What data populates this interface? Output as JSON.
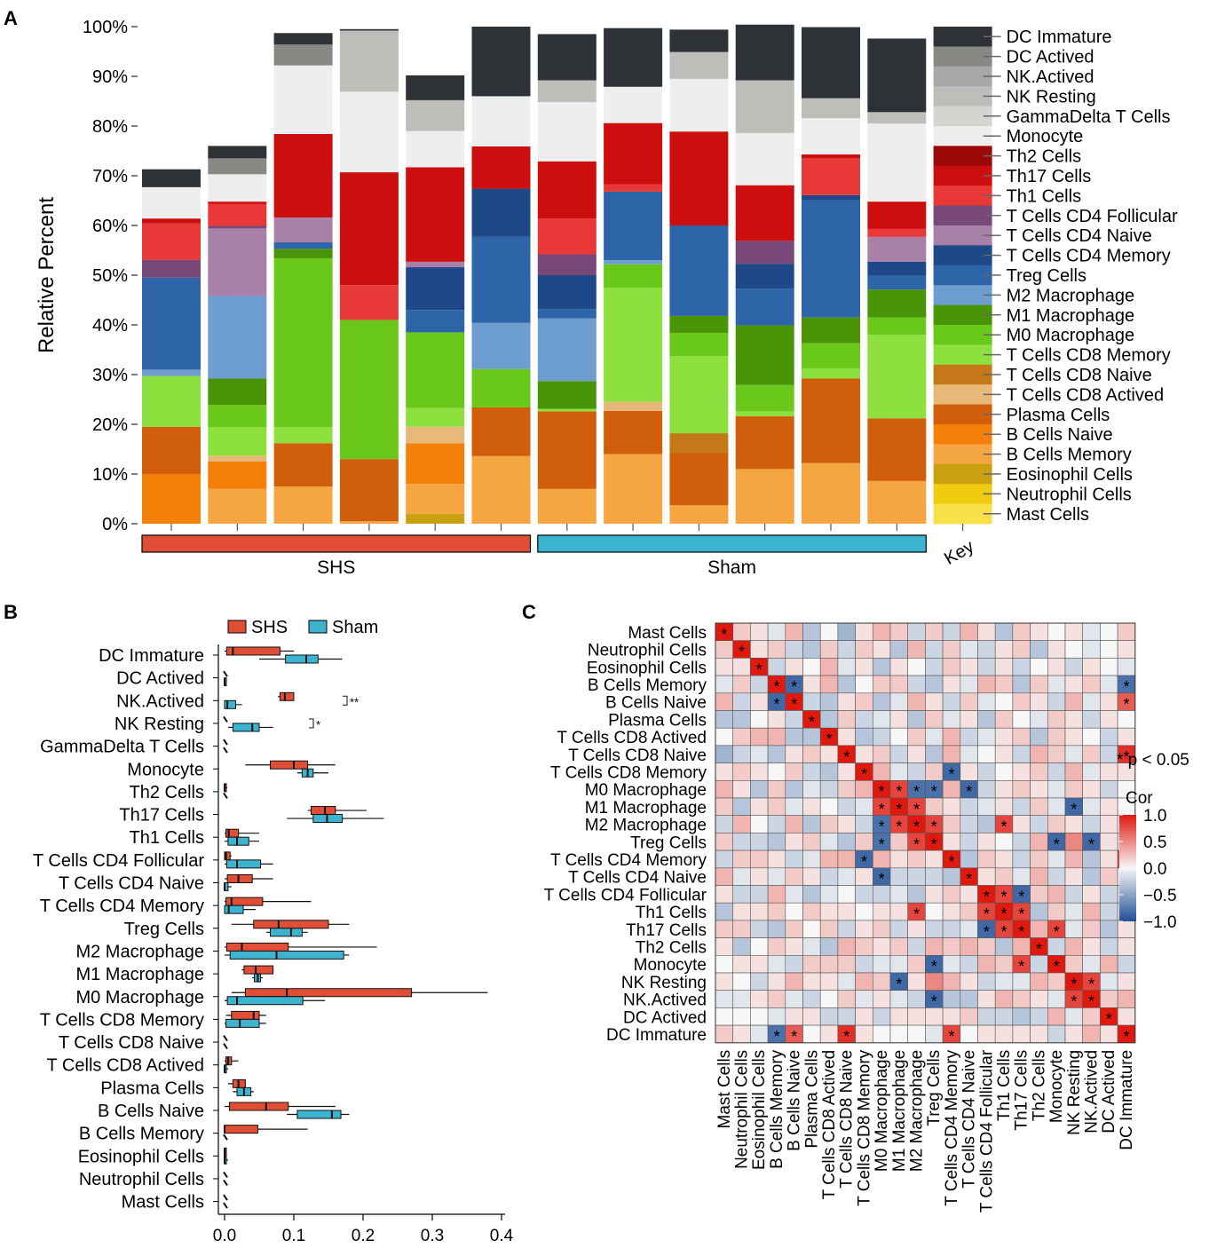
{
  "panel_labels": {
    "a": "A",
    "b": "B",
    "c": "C"
  },
  "cell_types_bottom_up": [
    "Mast Cells",
    "Neutrophil Cells",
    "Eosinophil Cells",
    "B Cells Memory",
    "B Cells Naive",
    "Plasma Cells",
    "T Cells CD8 Actived",
    "T Cells CD8 Naive",
    "T Cells CD8 Memory",
    "M0 Macrophage",
    "M1 Macrophage",
    "M2 Macrophage",
    "Treg Cells",
    "T Cells CD4 Memory",
    "T Cells CD4 Naive",
    "T Cells CD4 Follicular",
    "Th1 Cells",
    "Th17 Cells",
    "Th2 Cells",
    "Monocyte",
    "GammaDelta T Cells",
    "NK Resting",
    "NK.Actived",
    "DC Actived",
    "DC Immature"
  ],
  "colors": {
    "cell_colors": [
      "#f7e04a",
      "#f0cc10",
      "#c8a010",
      "#f5a640",
      "#f4800a",
      "#d05e0a",
      "#e8b878",
      "#c47818",
      "#8ee03e",
      "#6ac81a",
      "#4a9408",
      "#6e9ecf",
      "#2e64a8",
      "#1e4888",
      "#a880a8",
      "#784878",
      "#e83838",
      "#cc0e0e",
      "#9a0808",
      "#eeeeee",
      "#d4d4d0",
      "#bdbdb9",
      "#a8a8a6",
      "#888885",
      "#2e3236"
    ],
    "shs": "#e04e35",
    "sham": "#3cb4d0",
    "cor_neg": "#1f4f96",
    "cor_mid": "#f7f7f7",
    "cor_pos": "#e0190f"
  },
  "chart_data": [
    {
      "panel": "A",
      "type": "bar",
      "stacked": true,
      "ylabel": "Relative Percent",
      "ylim": [
        0,
        100
      ],
      "y_ticks": [
        "0%",
        "10%",
        "20%",
        "30%",
        "40%",
        "50%",
        "60%",
        "70%",
        "80%",
        "90%",
        "100%"
      ],
      "groups": [
        {
          "name": "SHS",
          "samples": 6
        },
        {
          "name": "Sham",
          "samples": 6
        }
      ],
      "key_label": "Key",
      "legend_order_top_down": [
        "DC Immature",
        "DC Actived",
        "NK.Actived",
        "NK Resting",
        "GammaDelta T Cells",
        "Monocyte",
        "Th2 Cells",
        "Th17 Cells",
        "Th1 Cells",
        "T Cells CD4 Follicular",
        "T Cells CD4 Naive",
        "T Cells CD4 Memory",
        "Treg Cells",
        "M2 Macrophage",
        "M1 Macrophage",
        "M0 Macrophage",
        "T Cells CD8 Memory",
        "T Cells CD8 Naive",
        "T Cells CD8 Actived",
        "Plasma Cells",
        "B Cells Naive",
        "B Cells Memory",
        "Eosinophil Cells",
        "Neutrophil Cells",
        "Mast Cells"
      ],
      "samples_percent": [
        [
          0,
          0,
          0,
          0,
          10,
          9.5,
          0,
          0,
          10.2,
          0,
          0,
          1.3,
          18.5,
          0,
          0,
          3.6,
          7.3,
          1,
          0,
          6.3,
          0,
          0,
          0,
          0,
          3.6
        ],
        [
          0,
          0,
          0,
          7,
          5.5,
          0,
          1.2,
          0,
          5.7,
          4.5,
          5.3,
          16.6,
          0,
          0,
          13.6,
          0.5,
          4.4,
          0.5,
          0,
          5.5,
          0,
          0,
          0,
          3.2,
          2.5
        ],
        [
          0,
          0,
          0,
          7.5,
          0,
          8.7,
          0,
          0,
          3.2,
          34,
          1.9,
          0,
          1.3,
          0,
          5,
          0,
          0,
          16.8,
          0,
          13.8,
          0,
          0,
          0,
          4.2,
          2.3
        ],
        [
          0,
          0,
          0,
          0.5,
          0,
          12.5,
          0,
          0,
          0,
          28,
          0,
          0,
          0,
          0,
          0,
          0,
          7,
          22.7,
          0,
          16.2,
          0,
          12.3,
          0,
          0,
          0.3
        ],
        [
          0,
          0,
          2,
          6,
          8.2,
          0,
          3.3,
          0,
          3.8,
          15.2,
          0,
          0,
          4.5,
          8.6,
          1.1,
          0,
          0,
          19,
          0,
          7.3,
          0,
          6.2,
          0,
          0,
          5
        ],
        [
          0,
          0,
          0,
          13.6,
          0,
          9.8,
          0,
          0,
          0,
          7.7,
          0,
          9.3,
          17.3,
          9.7,
          0,
          0,
          0,
          8.5,
          0,
          10.1,
          0,
          0,
          0,
          0,
          14
        ],
        [
          0,
          0,
          0,
          7,
          0,
          15.6,
          0,
          0,
          0.5,
          0,
          5.6,
          12.6,
          1.9,
          6.8,
          0,
          4.2,
          7.2,
          11.5,
          0,
          11.9,
          0,
          4.4,
          0,
          0,
          9.3
        ],
        [
          0,
          0,
          0,
          14,
          0,
          8.7,
          1.8,
          0,
          23,
          4.7,
          0,
          0.8,
          13.8,
          0,
          0,
          0,
          1.5,
          12.3,
          0,
          7.3,
          0,
          0,
          0,
          0,
          11.8
        ],
        [
          0,
          0,
          0,
          3.7,
          0,
          10.5,
          0,
          4,
          15.5,
          4.7,
          3.4,
          0,
          18.2,
          0,
          0,
          0,
          0,
          18.9,
          0,
          10.6,
          0,
          5.4,
          0,
          0,
          4.5
        ],
        [
          0,
          0,
          0,
          11,
          0,
          10.6,
          0,
          0,
          1,
          5.3,
          12,
          0,
          7.4,
          5,
          0,
          4.6,
          0,
          11.2,
          0,
          10.5,
          0,
          10.6,
          0,
          0,
          11.2
        ],
        [
          0,
          0,
          0,
          12.2,
          0,
          17,
          0,
          0,
          2,
          5.1,
          5.2,
          0,
          23.6,
          1,
          0,
          0,
          7.4,
          0.8,
          0,
          7.3,
          0,
          4,
          0,
          0,
          14.3
        ],
        [
          0,
          0,
          0,
          8.6,
          0,
          12.6,
          0,
          0,
          16.8,
          3.5,
          5.6,
          0,
          2.8,
          2.8,
          5,
          0,
          1.6,
          5.5,
          0,
          15.7,
          0,
          2.3,
          0,
          0,
          14.8
        ]
      ]
    },
    {
      "panel": "B",
      "type": "boxplot",
      "orientation": "horizontal",
      "legend": [
        "SHS",
        "Sham"
      ],
      "xlim": [
        0,
        0.4
      ],
      "x_ticks": [
        "0.0",
        "0.1",
        "0.2",
        "0.3",
        "0.4"
      ],
      "categories_top_down": [
        "DC Immature",
        "DC Actived",
        "NK.Actived",
        "NK Resting",
        "GammaDelta T Cells",
        "Monocyte",
        "Th2 Cells",
        "Th17 Cells",
        "Th1 Cells",
        "T Cells CD4 Follicular",
        "T Cells CD4 Naive",
        "T Cells CD4 Memory",
        "Treg Cells",
        "M2 Macrophage",
        "M1 Macrophage",
        "M0 Macrophage",
        "T Cells CD8 Memory",
        "T Cells CD8 Naive",
        "T Cells CD8 Actived",
        "Plasma Cells",
        "B Cells Naive",
        "B Cells Memory",
        "Eosinophil Cells",
        "Neutrophil Cells",
        "Mast Cells"
      ],
      "significance": [
        {
          "category": "NK.Actived",
          "label": "**"
        },
        {
          "category": "NK Resting",
          "label": "*"
        }
      ],
      "shs": [
        [
          0,
          0.003,
          0.012,
          0.08,
          0.1
        ],
        [
          0,
          0,
          0,
          0,
          0
        ],
        [
          0.077,
          0.08,
          0.087,
          0.1,
          0.1
        ],
        [
          0,
          0,
          0,
          0,
          0
        ],
        [
          0,
          0,
          0,
          0,
          0
        ],
        [
          0.03,
          0.066,
          0.1,
          0.12,
          0.16
        ],
        [
          0,
          0,
          0,
          0.002,
          0.004
        ],
        [
          0.12,
          0.125,
          0.145,
          0.16,
          0.205
        ],
        [
          0,
          0.002,
          0.006,
          0.02,
          0.05
        ],
        [
          0,
          0,
          0.002,
          0.008,
          0.01
        ],
        [
          0,
          0.004,
          0.02,
          0.04,
          0.07
        ],
        [
          0,
          0.002,
          0.01,
          0.055,
          0.125
        ],
        [
          0.01,
          0.042,
          0.078,
          0.15,
          0.18
        ],
        [
          0,
          0.003,
          0.025,
          0.092,
          0.22
        ],
        [
          0.025,
          0.028,
          0.045,
          0.07,
          0.07
        ],
        [
          0.01,
          0.03,
          0.09,
          0.27,
          0.38
        ],
        [
          0.002,
          0.01,
          0.042,
          0.05,
          0.06
        ],
        [
          0,
          0,
          0,
          0,
          0
        ],
        [
          0,
          0.002,
          0.005,
          0.01,
          0.02
        ],
        [
          0.005,
          0.012,
          0.02,
          0.03,
          0.03
        ],
        [
          0,
          0.007,
          0.06,
          0.092,
          0.16
        ],
        [
          0,
          0,
          0,
          0.048,
          0.12
        ],
        [
          0,
          0,
          0,
          0,
          0.002
        ],
        [
          0,
          0,
          0,
          0,
          0
        ],
        [
          0,
          0,
          0,
          0,
          0
        ]
      ],
      "sham": [
        [
          0.05,
          0.088,
          0.118,
          0.135,
          0.17
        ],
        [
          0,
          0,
          0,
          0,
          0.003
        ],
        [
          0,
          0,
          0.004,
          0.016,
          0.025
        ],
        [
          0.005,
          0.012,
          0.04,
          0.05,
          0.07
        ],
        [
          0,
          0,
          0,
          0,
          0
        ],
        [
          0.105,
          0.112,
          0.12,
          0.128,
          0.15
        ],
        [
          0,
          0,
          0,
          0,
          0
        ],
        [
          0.09,
          0.128,
          0.148,
          0.17,
          0.23
        ],
        [
          0,
          0.005,
          0.018,
          0.035,
          0.05
        ],
        [
          0,
          0.003,
          0.018,
          0.052,
          0.07
        ],
        [
          0,
          0,
          0,
          0.005,
          0.01
        ],
        [
          0,
          0,
          0.006,
          0.027,
          0.045
        ],
        [
          0.06,
          0.066,
          0.096,
          0.112,
          0.12
        ],
        [
          0,
          0.008,
          0.075,
          0.172,
          0.18
        ],
        [
          0.04,
          0.043,
          0.048,
          0.052,
          0.055
        ],
        [
          0,
          0.004,
          0.018,
          0.113,
          0.145
        ],
        [
          0,
          0.002,
          0.022,
          0.05,
          0.06
        ],
        [
          0,
          0,
          0,
          0,
          0
        ],
        [
          0,
          0,
          0,
          0,
          0.005
        ],
        [
          0.012,
          0.018,
          0.028,
          0.038,
          0.042
        ],
        [
          0.09,
          0.105,
          0.155,
          0.168,
          0.18
        ],
        [
          0,
          0,
          0,
          0,
          0
        ],
        [
          0,
          0,
          0,
          0,
          0.005
        ],
        [
          0,
          0,
          0,
          0,
          0
        ],
        [
          0,
          0,
          0,
          0,
          0
        ]
      ]
    },
    {
      "panel": "C",
      "type": "heatmap",
      "title": "Cor",
      "note": "* p < 0.05",
      "scale": [
        -1,
        1
      ],
      "scale_ticks": [
        "1.0",
        "0.5",
        "0.0",
        "−0.5",
        "−1.0"
      ],
      "labels": [
        "Mast Cells",
        "Neutrophil Cells",
        "Eosinophil Cells",
        "B Cells Memory",
        "B Cells Naive",
        "Plasma Cells",
        "T Cells CD8 Actived",
        "T Cells CD8 Naive",
        "T Cells CD8 Memory",
        "M0 Macrophage",
        "M1 Macrophage",
        "M2 Macrophage",
        "Treg Cells",
        "T Cells CD4 Memory",
        "T Cells CD4 Naive",
        "T Cells CD4 Follicular",
        "Th1 Cells",
        "Th17 Cells",
        "Th2 Cells",
        "Monocyte",
        "NK Resting",
        "NK.Actived",
        "DC Actived",
        "DC Immature"
      ],
      "upper_triangle_rows": [
        [
          0.2,
          0.1,
          -0.1,
          0.3,
          -0.3,
          0.0,
          -0.4,
          0.1,
          0.3,
          0.2,
          -0.2,
          0.2,
          -0.2,
          0.3,
          0.1,
          -0.3,
          0.2,
          0.1,
          0.0,
          0.1,
          -0.1,
          0.0,
          0.2
        ],
        [
          0.1,
          0.2,
          -0.2,
          -0.3,
          0.2,
          -0.2,
          0.2,
          0.1,
          -0.3,
          0.3,
          -0.2,
          0.2,
          -0.1,
          -0.2,
          0.1,
          0.2,
          -0.3,
          0.1,
          0.0,
          -0.1,
          0.0,
          0.1
        ],
        [
          -0.2,
          0.1,
          0.0,
          0.3,
          -0.1,
          0.1,
          -0.3,
          0.1,
          0.0,
          -0.2,
          0.2,
          0.1,
          -0.2,
          0.1,
          -0.2,
          0.0,
          0.1,
          -0.2,
          0.1,
          0.0,
          -0.1
        ],
        [
          -0.85,
          0.1,
          0.3,
          -0.3,
          0.0,
          0.2,
          0.2,
          -0.2,
          -0.3,
          0.1,
          -0.1,
          0.3,
          0.2,
          -0.3,
          0.2,
          -0.1,
          0.1,
          0.2,
          -0.1,
          -0.8
        ],
        [
          -0.2,
          -0.3,
          0.1,
          0.2,
          -0.3,
          -0.1,
          0.3,
          0.1,
          -0.2,
          0.2,
          -0.1,
          0.0,
          0.2,
          0.1,
          -0.2,
          0.3,
          -0.1,
          0.1,
          0.7
        ],
        [
          -0.3,
          0.2,
          -0.2,
          -0.1,
          0.1,
          -0.3,
          0.2,
          -0.1,
          0.1,
          -0.3,
          0.2,
          0.0,
          -0.1,
          0.2,
          0.1,
          -0.2,
          0.1,
          0.0
        ],
        [
          0.1,
          -0.3,
          -0.2,
          0.0,
          0.2,
          -0.1,
          0.3,
          -0.2,
          -0.1,
          0.1,
          0.2,
          -0.3,
          0.2,
          0.1,
          0.0,
          -0.2,
          0.1
        ],
        [
          0.1,
          0.2,
          -0.2,
          0.1,
          -0.3,
          0.3,
          -0.1,
          0.0,
          0.1,
          -0.2,
          0.3,
          0.2,
          -0.1,
          0.2,
          -0.2,
          0.9
        ],
        [
          0.3,
          -0.1,
          -0.2,
          0.2,
          -0.85,
          0.1,
          -0.2,
          0.0,
          0.1,
          0.2,
          -0.2,
          0.3,
          -0.1,
          0.1,
          0.1
        ],
        [
          0.8,
          -0.8,
          -0.8,
          0.3,
          -0.85,
          -0.2,
          0.1,
          0.2,
          0.1,
          -0.1,
          0.2,
          0.1,
          -0.2,
          0.0
        ],
        [
          0.8,
          0.2,
          0.1,
          -0.2,
          -0.1,
          0.1,
          -0.2,
          0.2,
          -0.1,
          -0.85,
          -0.1,
          0.1,
          0.0
        ],
        [
          0.8,
          0.2,
          -0.2,
          -0.3,
          0.8,
          0.1,
          -0.2,
          0.2,
          0.1,
          -0.2,
          0.1,
          0.0
        ],
        [
          0.1,
          -0.2,
          0.1,
          0.0,
          -0.2,
          0.3,
          -0.85,
          0.5,
          -0.85,
          0.1,
          -0.1
        ],
        [
          -0.3,
          0.2,
          0.1,
          -0.2,
          0.2,
          -0.1,
          0.3,
          -0.3,
          0.1,
          0.8
        ],
        [
          0.1,
          0.2,
          -0.1,
          0.3,
          -0.2,
          0.1,
          -0.3,
          0.2,
          0.0
        ],
        [
          0.8,
          -0.85,
          0.2,
          0.3,
          -0.2,
          0.1,
          -0.2,
          0.1
        ],
        [
          0.8,
          -0.3,
          0.2,
          -0.1,
          0.3,
          -0.2,
          0.1
        ],
        [
          0.3,
          0.8,
          -0.1,
          0.2,
          -0.3,
          0.1
        ],
        [
          -0.2,
          0.3,
          0.1,
          -0.2,
          0.1
        ],
        [
          0.2,
          -0.1,
          0.3,
          -0.2
        ],
        [
          0.8,
          -0.1,
          0.1
        ],
        [
          0.2,
          0.3
        ],
        [
          0.1
        ]
      ]
    }
  ]
}
